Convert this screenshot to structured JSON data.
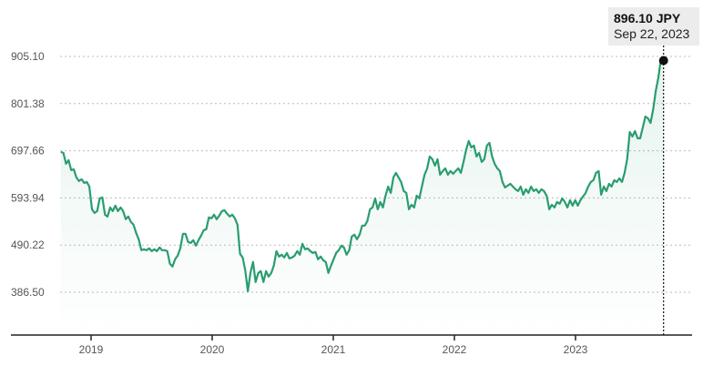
{
  "chart_data": {
    "type": "line",
    "title": "",
    "xlabel": "",
    "ylabel": "",
    "currency": "JPY",
    "x_start": 2018.75,
    "x_end": 2023.727,
    "xlim": [
      2018.5,
      2024.0
    ],
    "ylim": [
      386.5,
      905.1
    ],
    "y_ticks": [
      "905.10",
      "801.38",
      "697.66",
      "593.94",
      "490.22",
      "386.50"
    ],
    "y_tick_values": [
      905.1,
      801.38,
      697.66,
      593.94,
      490.22,
      386.5
    ],
    "x_ticks": [
      "2019",
      "2020",
      "2021",
      "2022",
      "2023"
    ],
    "x_tick_values": [
      2019,
      2020,
      2021,
      2022,
      2023
    ],
    "grid": true,
    "line_color": "#2a9d6f",
    "values": [
      695,
      693,
      669,
      677,
      655,
      657,
      639,
      631,
      635,
      627,
      629,
      619,
      569,
      561,
      565,
      593,
      595,
      557,
      553,
      573,
      565,
      577,
      565,
      573,
      565,
      547,
      553,
      541,
      535,
      517,
      503,
      479,
      481,
      479,
      483,
      477,
      481,
      477,
      485,
      479,
      479,
      477,
      449,
      443,
      459,
      467,
      483,
      515,
      515,
      497,
      495,
      501,
      489,
      501,
      511,
      523,
      525,
      551,
      549,
      557,
      547,
      555,
      565,
      567,
      559,
      553,
      557,
      549,
      535,
      471,
      463,
      435,
      389,
      429,
      453,
      409,
      429,
      433,
      409,
      433,
      421,
      429,
      445,
      477,
      465,
      469,
      463,
      473,
      461,
      463,
      467,
      477,
      469,
      493,
      481,
      483,
      477,
      473,
      475,
      459,
      465,
      457,
      453,
      429,
      445,
      459,
      473,
      479,
      489,
      485,
      469,
      479,
      509,
      513,
      503,
      513,
      533,
      533,
      543,
      569,
      573,
      593,
      569,
      585,
      573,
      599,
      619,
      605,
      639,
      649,
      639,
      629,
      609,
      605,
      569,
      579,
      573,
      599,
      593,
      619,
      645,
      659,
      685,
      679,
      665,
      679,
      645,
      653,
      659,
      645,
      653,
      647,
      653,
      659,
      649,
      673,
      699,
      719,
      705,
      709,
      685,
      693,
      673,
      679,
      709,
      715,
      685,
      669,
      659,
      653,
      629,
      617,
      621,
      625,
      619,
      613,
      609,
      619,
      601,
      613,
      605,
      619,
      609,
      613,
      605,
      613,
      609,
      599,
      569,
      579,
      573,
      585,
      581,
      593,
      585,
      573,
      589,
      577,
      589,
      577,
      589,
      597,
      605,
      619,
      629,
      633,
      649,
      653,
      601,
      619,
      609,
      625,
      619,
      633,
      629,
      637,
      629,
      649,
      679,
      739,
      729,
      741,
      725,
      725,
      749,
      773,
      769,
      759,
      789,
      829,
      859,
      899,
      896.1
    ],
    "tooltip": {
      "value": "896.10 JPY",
      "date": "Sep 22, 2023",
      "x": 2023.727,
      "y": 896.1
    }
  }
}
